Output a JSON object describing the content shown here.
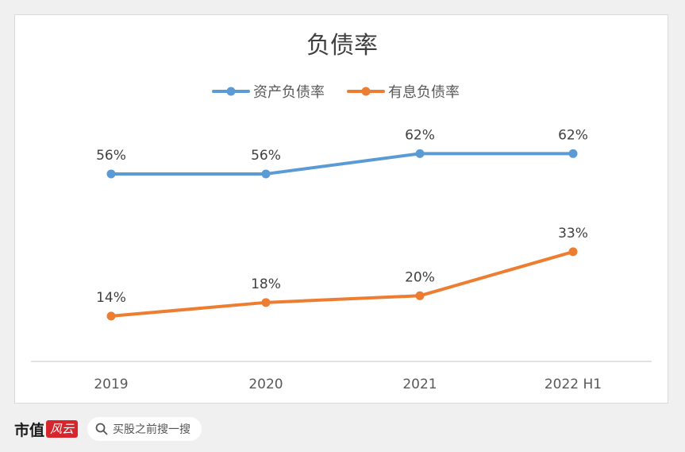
{
  "chart_data": {
    "type": "line",
    "title": "负债率",
    "categories": [
      "2019",
      "2020",
      "2021",
      "2022 H1"
    ],
    "series": [
      {
        "name": "资产负债率",
        "values": [
          56,
          56,
          62,
          62
        ],
        "labels": [
          "56%",
          "56%",
          "62%",
          "62%"
        ],
        "color": "#5b9bd5"
      },
      {
        "name": "有息负债率",
        "values": [
          14,
          18,
          20,
          33
        ],
        "labels": [
          "14%",
          "18%",
          "20%",
          "33%"
        ],
        "color": "#ed7d31"
      }
    ],
    "ylim": [
      0,
      75
    ],
    "grid": false,
    "legend": "top"
  },
  "footer": {
    "brand_name": "市值",
    "brand_badge": "风云",
    "search_hint": "买股之前搜一搜"
  },
  "icons": {
    "search": "search-icon"
  }
}
